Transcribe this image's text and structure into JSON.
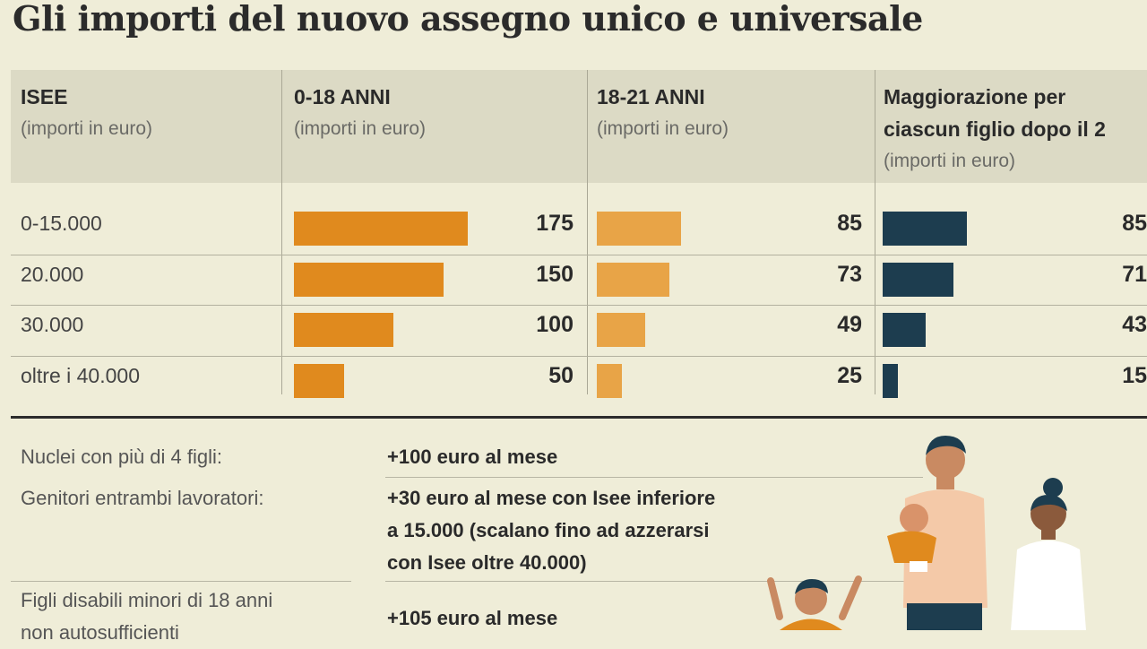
{
  "title": "Gli importi del nuovo assegno unico e universale",
  "table": {
    "headers": [
      {
        "label": "ISEE",
        "sub": "(importi in euro)"
      },
      {
        "label": "0-18 ANNI",
        "sub": "(importi in euro)"
      },
      {
        "label": "18-21 ANNI",
        "sub": "(importi in euro)"
      },
      {
        "label": "Maggiorazione per ciascun figlio dopo il 2",
        "line1": "Maggiorazione per",
        "line2": "ciascun figlio dopo il 2",
        "sub": "(importi in euro)"
      }
    ]
  },
  "chart_data": {
    "type": "bar",
    "orientation": "horizontal",
    "categories": [
      "0-15.000",
      "20.000",
      "30.000",
      "oltre i 40.000"
    ],
    "series": [
      {
        "name": "0-18 ANNI",
        "values": [
          175,
          150,
          100,
          50
        ],
        "color": "#e08a1e"
      },
      {
        "name": "18-21 ANNI",
        "values": [
          85,
          73,
          49,
          25
        ],
        "color": "#e8a447"
      },
      {
        "name": "Maggiorazione per ciascun figlio dopo il 2",
        "values": [
          85,
          71,
          43,
          15
        ],
        "color": "#1d3d4f"
      }
    ]
  },
  "notes": [
    {
      "label": "Nuclei con più di 4 figli:",
      "value": "+100 euro al mese"
    },
    {
      "label": "Genitori entrambi lavoratori:",
      "value": "+30 euro al mese con Isee inferiore\na 15.000 (scalano fino ad azzerarsi\ncon Isee oltre 40.000)"
    },
    {
      "label": "Figli disabili minori di 18 anni\nnon autosufficienti",
      "value": "+105 euro al mese"
    }
  ],
  "colors": {
    "background": "#efedd8",
    "header": "#dcdac5",
    "orange": "#e08a1e",
    "light_orange": "#e8a447",
    "navy": "#1d3d4f"
  },
  "illustration": "family-illustration"
}
